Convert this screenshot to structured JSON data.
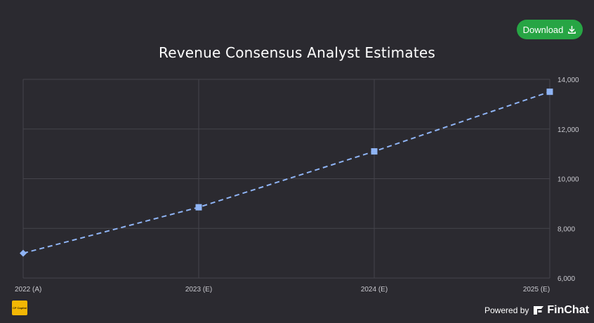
{
  "header": {
    "download_label": "Download"
  },
  "footer": {
    "logo_text": "CP Capital",
    "powered_label": "Powered by",
    "brand_name": "FinChat"
  },
  "colors": {
    "background": "#2b2a30",
    "grid": "#45444b",
    "series": "#8fb4f5",
    "download_button": "#27a544"
  },
  "chart_data": {
    "type": "line",
    "title": "Revenue Consensus Analyst Estimates",
    "xlabel": "",
    "ylabel": "",
    "categories": [
      "2022 (A)",
      "2023 (E)",
      "2024 (E)",
      "2025 (E)"
    ],
    "series": [
      {
        "values": [
          7000,
          8850,
          11100,
          13500
        ],
        "style": "dashed"
      }
    ],
    "ylim": [
      6000,
      14000
    ],
    "yticks": [
      "6,000",
      "8,000",
      "10,000",
      "12,000",
      "14,000"
    ],
    "y_axis_position": "right",
    "grid": true,
    "legend": "none"
  }
}
